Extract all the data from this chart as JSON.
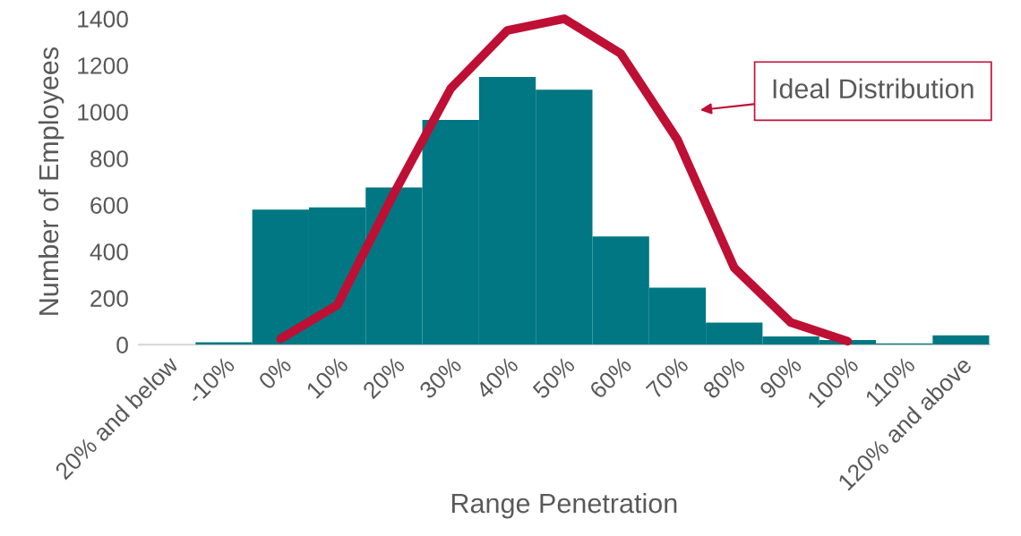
{
  "chart_data": {
    "type": "bar",
    "xlabel": "Range Penetration",
    "ylabel": "Number of Employees",
    "categories": [
      "20% and below",
      "-10%",
      "0%",
      "10%",
      "20%",
      "30%",
      "40%",
      "50%",
      "60%",
      "70%",
      "80%",
      "90%",
      "100%",
      "110%",
      "120% and above"
    ],
    "series": [
      {
        "color": "#007782",
        "values": [
          null,
          10,
          580,
          590,
          675,
          965,
          1150,
          1095,
          465,
          245,
          95,
          35,
          20,
          5,
          40
        ]
      },
      {
        "type": "line",
        "color": "#be0f34",
        "values": [
          null,
          null,
          25,
          170,
          650,
          1100,
          1350,
          1400,
          1250,
          880,
          330,
          95,
          15,
          null,
          null
        ]
      }
    ],
    "ylim": [
      0,
      1400
    ],
    "yticks": [
      0,
      200,
      400,
      600,
      800,
      1000,
      1200,
      1400
    ],
    "grid": false,
    "legend": false,
    "marker": "none",
    "line_style": "solid",
    "annotations": [
      "Ideal Distribution"
    ]
  }
}
